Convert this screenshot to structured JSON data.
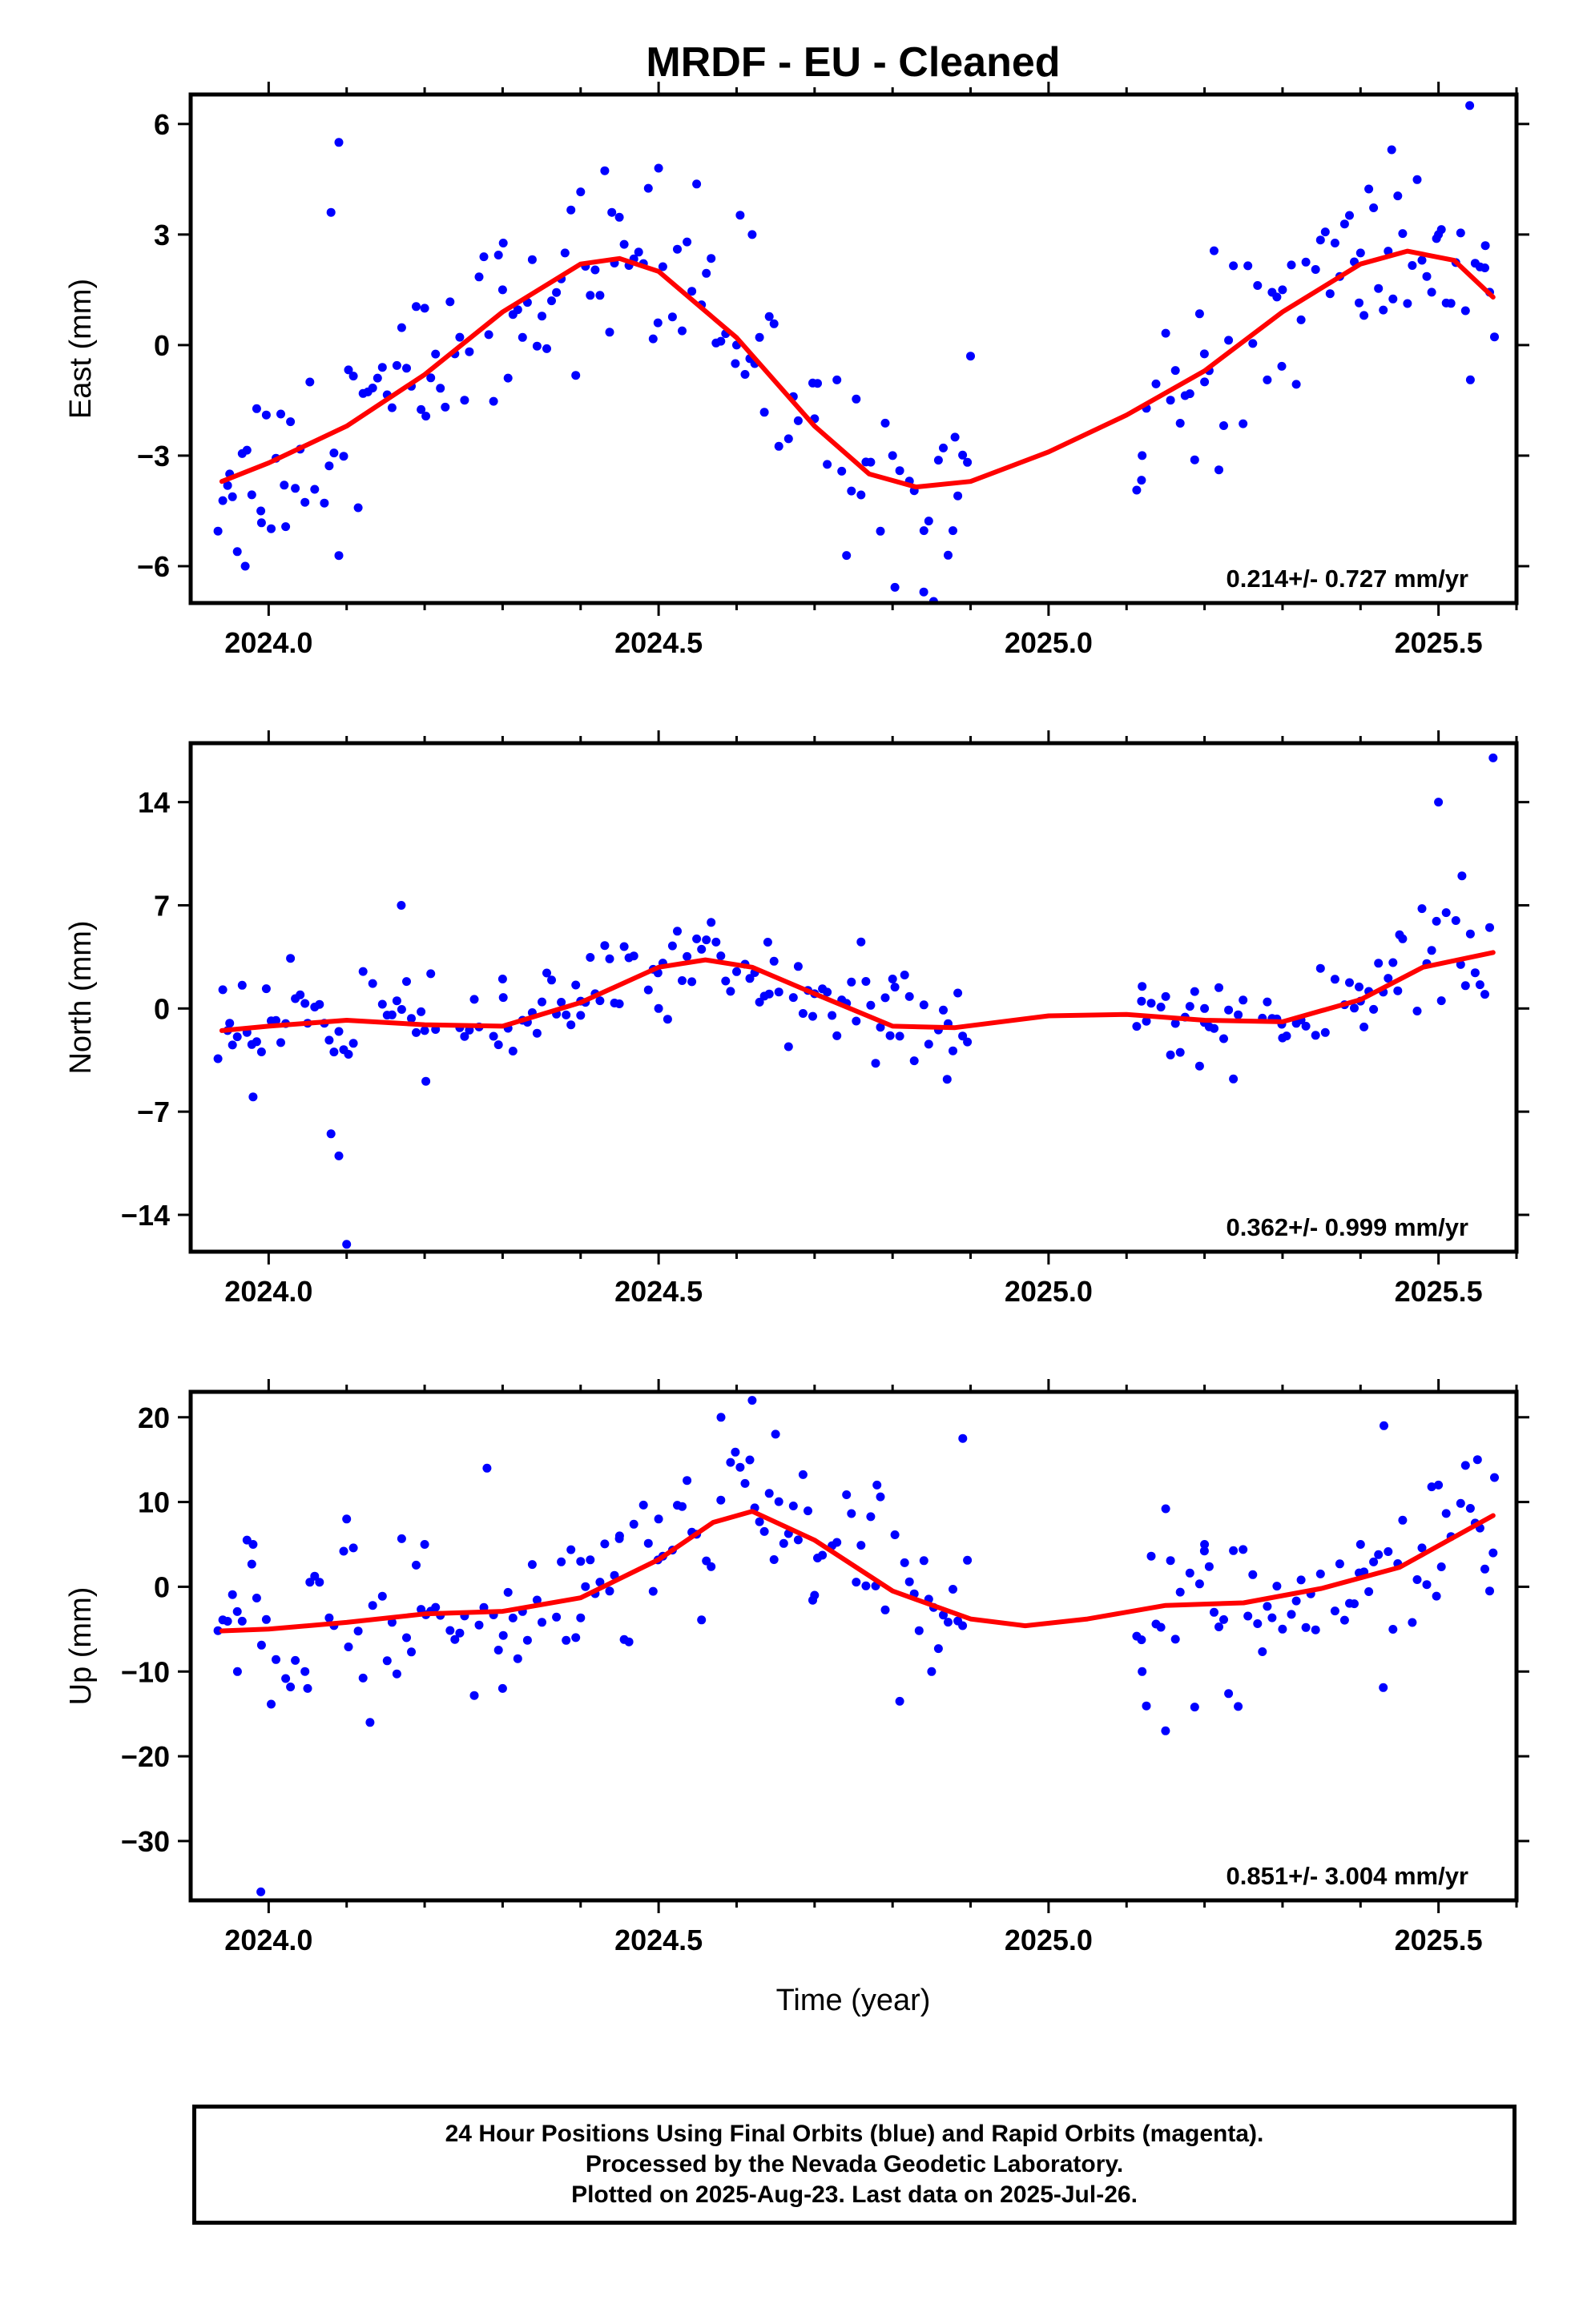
{
  "title": "MRDF  - EU - Cleaned",
  "xlabel": "Time (year)",
  "colors": {
    "data": "#0000ff",
    "fit": "#ff0000",
    "axis": "#000000"
  },
  "footer": {
    "line1": "24 Hour Positions Using Final Orbits (blue) and Rapid Orbits (magenta).",
    "line2": "Processed by the Nevada Geodetic Laboratory.",
    "line3": "Plotted on 2025-Aug-23. Last data on 2025-Jul-26."
  },
  "chart_data": [
    {
      "type": "scatter",
      "panel": "east",
      "ylabel": "East (mm)",
      "xlim": [
        2023.9,
        2025.6
      ],
      "ylim": [
        -7,
        6.8
      ],
      "xticks": [
        2024.0,
        2024.5,
        2025.0,
        2025.5
      ],
      "xtick_labels": [
        "2024.0",
        "2024.5",
        "2025.0",
        "2025.5"
      ],
      "yticks": [
        -6,
        -3,
        0,
        3,
        6
      ],
      "ytick_labels": [
        "−6",
        "−3",
        "0",
        "3",
        "6"
      ],
      "rate_label": "0.214+/- 0.727 mm/yr",
      "gap": [
        2024.9,
        2025.11
      ],
      "points_approx": [
        [
          2023.95,
          -3.5
        ],
        [
          2023.97,
          -6.0
        ],
        [
          2023.99,
          -4.5
        ],
        [
          2024.02,
          -3.8
        ],
        [
          2024.08,
          3.6
        ],
        [
          2024.09,
          5.5
        ],
        [
          2024.2,
          1.0
        ],
        [
          2024.3,
          1.5
        ],
        [
          2024.38,
          2.5
        ],
        [
          2024.44,
          3.6
        ],
        [
          2024.5,
          4.8
        ],
        [
          2024.6,
          0.0
        ],
        [
          2024.62,
          3.0
        ],
        [
          2024.7,
          -2.0
        ],
        [
          2024.8,
          -3.0
        ],
        [
          2024.84,
          -6.7
        ],
        [
          2024.88,
          -2.5
        ],
        [
          2024.9,
          -0.3
        ],
        [
          2025.12,
          -3.0
        ],
        [
          2025.2,
          -1.0
        ],
        [
          2025.3,
          1.5
        ],
        [
          2025.4,
          2.5
        ],
        [
          2025.44,
          5.3
        ],
        [
          2025.5,
          3.0
        ],
        [
          2025.54,
          6.5
        ],
        [
          2025.56,
          2.7
        ]
      ],
      "fit": [
        [
          2023.94,
          -3.7
        ],
        [
          2024.0,
          -3.2
        ],
        [
          2024.1,
          -2.2
        ],
        [
          2024.2,
          -0.8
        ],
        [
          2024.3,
          0.9
        ],
        [
          2024.4,
          2.2
        ],
        [
          2024.45,
          2.35
        ],
        [
          2024.5,
          2.0
        ],
        [
          2024.6,
          0.2
        ],
        [
          2024.7,
          -2.2
        ],
        [
          2024.77,
          -3.5
        ],
        [
          2024.83,
          -3.85
        ],
        [
          2024.9,
          -3.7
        ],
        [
          2025.0,
          -2.9
        ],
        [
          2025.1,
          -1.9
        ],
        [
          2025.2,
          -0.7
        ],
        [
          2025.3,
          0.9
        ],
        [
          2025.4,
          2.2
        ],
        [
          2025.46,
          2.55
        ],
        [
          2025.52,
          2.3
        ],
        [
          2025.57,
          1.3
        ]
      ]
    },
    {
      "type": "scatter",
      "panel": "north",
      "ylabel": "North (mm)",
      "xlim": [
        2023.9,
        2025.6
      ],
      "ylim": [
        -16.5,
        18
      ],
      "xticks": [
        2024.0,
        2024.5,
        2025.0,
        2025.5
      ],
      "xtick_labels": [
        "2024.0",
        "2024.5",
        "2025.0",
        "2025.5"
      ],
      "yticks": [
        -14,
        -7,
        0,
        7,
        14
      ],
      "ytick_labels": [
        "−14",
        "−7",
        "0",
        "7",
        "14"
      ],
      "rate_label": "0.362+/- 0.999 mm/yr",
      "gap": [
        2024.9,
        2025.11
      ],
      "points_approx": [
        [
          2023.95,
          -1.0
        ],
        [
          2023.98,
          -6.0
        ],
        [
          2024.05,
          -1.0
        ],
        [
          2024.08,
          -8.5
        ],
        [
          2024.09,
          -10.0
        ],
        [
          2024.1,
          -16.0
        ],
        [
          2024.17,
          7.0
        ],
        [
          2024.2,
          -1.5
        ],
        [
          2024.3,
          2.0
        ],
        [
          2024.4,
          0.5
        ],
        [
          2024.5,
          0.0
        ],
        [
          2024.6,
          2.5
        ],
        [
          2024.64,
          4.5
        ],
        [
          2024.7,
          1.0
        ],
        [
          2024.8,
          2.0
        ],
        [
          2024.87,
          -4.8
        ],
        [
          2025.12,
          1.5
        ],
        [
          2025.2,
          0.0
        ],
        [
          2025.3,
          -2.0
        ],
        [
          2025.4,
          0.5
        ],
        [
          2025.45,
          5.0
        ],
        [
          2025.5,
          14.0
        ],
        [
          2025.53,
          9.0
        ],
        [
          2025.57,
          17.0
        ]
      ],
      "fit": [
        [
          2023.94,
          -1.5
        ],
        [
          2024.0,
          -1.2
        ],
        [
          2024.1,
          -0.8
        ],
        [
          2024.2,
          -1.1
        ],
        [
          2024.3,
          -1.2
        ],
        [
          2024.4,
          0.4
        ],
        [
          2024.5,
          2.8
        ],
        [
          2024.56,
          3.3
        ],
        [
          2024.62,
          2.8
        ],
        [
          2024.7,
          1.0
        ],
        [
          2024.8,
          -1.2
        ],
        [
          2024.88,
          -1.3
        ],
        [
          2025.0,
          -0.5
        ],
        [
          2025.1,
          -0.4
        ],
        [
          2025.2,
          -0.8
        ],
        [
          2025.3,
          -0.9
        ],
        [
          2025.4,
          0.6
        ],
        [
          2025.48,
          2.8
        ],
        [
          2025.57,
          3.8
        ]
      ]
    },
    {
      "type": "scatter",
      "panel": "up",
      "ylabel": "Up (mm)",
      "xlim": [
        2023.9,
        2025.6
      ],
      "ylim": [
        -37,
        23
      ],
      "xticks": [
        2024.0,
        2024.5,
        2025.0,
        2025.5
      ],
      "xtick_labels": [
        "2024.0",
        "2024.5",
        "2025.0",
        "2025.5"
      ],
      "yticks": [
        -30,
        -20,
        -10,
        0,
        10,
        20
      ],
      "ytick_labels": [
        "−30",
        "−20",
        "−10",
        "0",
        "10",
        "20"
      ],
      "rate_label": "0.851+/- 3.004 mm/yr",
      "gap": [
        2024.9,
        2025.11
      ],
      "points_approx": [
        [
          2023.96,
          -10.0
        ],
        [
          2023.98,
          5.0
        ],
        [
          2023.99,
          -36.0
        ],
        [
          2024.05,
          -12.0
        ],
        [
          2024.1,
          8.0
        ],
        [
          2024.13,
          -16.0
        ],
        [
          2024.2,
          5.0
        ],
        [
          2024.28,
          14.0
        ],
        [
          2024.3,
          -12.0
        ],
        [
          2024.4,
          3.0
        ],
        [
          2024.45,
          6.0
        ],
        [
          2024.5,
          8.0
        ],
        [
          2024.58,
          20.0
        ],
        [
          2024.62,
          22.0
        ],
        [
          2024.65,
          18.0
        ],
        [
          2024.7,
          -1.0
        ],
        [
          2024.78,
          12.0
        ],
        [
          2024.85,
          -10.0
        ],
        [
          2024.89,
          17.5
        ],
        [
          2025.12,
          -10.0
        ],
        [
          2025.15,
          -17.0
        ],
        [
          2025.2,
          5.0
        ],
        [
          2025.3,
          -5.0
        ],
        [
          2025.4,
          5.0
        ],
        [
          2025.43,
          19.0
        ],
        [
          2025.5,
          12.0
        ],
        [
          2025.55,
          15.0
        ],
        [
          2025.57,
          4.0
        ]
      ],
      "fit": [
        [
          2023.94,
          -5.2
        ],
        [
          2024.0,
          -5.0
        ],
        [
          2024.1,
          -4.2
        ],
        [
          2024.2,
          -3.2
        ],
        [
          2024.3,
          -2.9
        ],
        [
          2024.4,
          -1.3
        ],
        [
          2024.5,
          3.2
        ],
        [
          2024.57,
          7.6
        ],
        [
          2024.62,
          8.9
        ],
        [
          2024.7,
          5.5
        ],
        [
          2024.8,
          -0.5
        ],
        [
          2024.9,
          -3.8
        ],
        [
          2024.97,
          -4.6
        ],
        [
          2025.05,
          -3.8
        ],
        [
          2025.15,
          -2.2
        ],
        [
          2025.25,
          -1.9
        ],
        [
          2025.35,
          -0.2
        ],
        [
          2025.45,
          2.3
        ],
        [
          2025.57,
          8.4
        ]
      ]
    }
  ]
}
